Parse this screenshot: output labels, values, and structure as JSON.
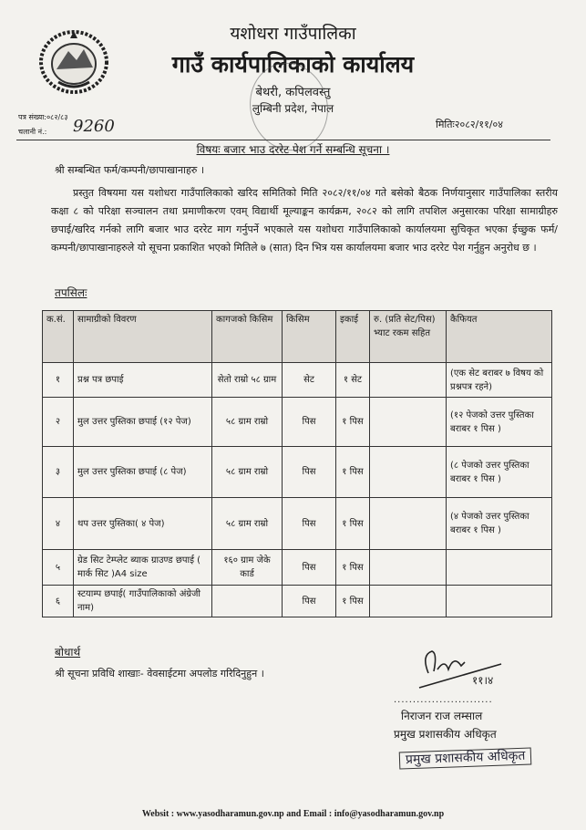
{
  "header": {
    "municipality": "यशोधरा गाउँपालिका",
    "office": "गाउँ कार्यपालिकाको कार्यालय",
    "address_line1": "बेथरी, कपिलवस्तु",
    "address_line2": "लुम्बिनी प्रदेश, नेपाल",
    "letter_no": "पत्र संख्या:०८२/८३",
    "dispatch_no_label": "चलानी नं.:",
    "dispatch_no": "9260",
    "date": "मितिः२०८२/११/०४"
  },
  "subject": "विषयः बजार भाउ दररेट पेश गर्ने सम्बन्धि सूचना ।",
  "salutation": "श्री सम्बन्धित फर्म/कम्पनी/छापाखानाहरु ।",
  "body": "प्रस्तुत विषयमा यस यशोधरा गाउँपालिकाको खरिद समितिको मिति २०८२/११/०४ गते बसेको बैठक निर्णयानुसार गाउँपालिका स्तरीय कक्षा ८ को परिक्षा सञ्चालन तथा प्रमाणीकरण एवम् विद्यार्थी मूल्याङ्कन कार्यक्रम, २०८२ को लागि तपशिल अनुसारका परिक्षा सामाग्रीहरु छपाई/खरिद गर्नको लागि बजार भाउ दररेट माग गर्नुपर्ने भएकाले यस यशोधरा गाउँपालिकाको कार्यालयमा सुचिकृत भएका ईच्छुक फर्म/कम्पनी/छापाखानाहरुले यो सूचना प्रकाशित भएको मितिले ७ (सात) दिन भित्र यस कार्यालयमा बजार भाउ दररेट पेश गर्नुहुन अनुरोध छ ।",
  "details_label": "तपसिलः",
  "table": {
    "headers": [
      "क.सं.",
      "सामाग्रीको विवरण",
      "कागजको किसिम",
      "किसिम",
      "इकाई",
      "रु. (प्रति सेट/पिस) भ्याट रकम सहित",
      "कैफियत"
    ],
    "rows": [
      [
        "१",
        "प्रश्न पत्र छपाई",
        "सेतो राम्रो ५८ ग्राम",
        "सेट",
        "१ सेट",
        "",
        "(एक सेट बराबर ७ विषय को प्रश्नपत्र रहने)"
      ],
      [
        "२",
        "मुल उत्तर पुस्तिका छपाई (१२ पेज)",
        "५८ ग्राम राम्रो",
        "पिस",
        "१ पिस",
        "",
        "(१२ पेजको उत्तर पुस्तिका बराबर १ पिस )"
      ],
      [
        "३",
        "मुल उत्तर पुस्तिका छपाई (८ पेज)",
        "५८ ग्राम राम्रो",
        "पिस",
        "१ पिस",
        "",
        "(८ पेजको उत्तर पुस्तिका बराबर १ पिस )"
      ],
      [
        "४",
        "थप उत्तर पुस्तिका( ४ पेज)",
        "५८ ग्राम राम्रो",
        "पिस",
        "१ पिस",
        "",
        "(४ पेजको उत्तर पुस्तिका बराबर १ पिस )"
      ],
      [
        "५",
        "ग्रेड सिट टेम्प्लेट ब्याक ग्राउण्ड छपाई ( मार्क सिट )A4 size",
        "१६० ग्राम जेके कार्ड",
        "पिस",
        "१ पिस",
        "",
        ""
      ],
      [
        "६",
        "स्टयाम्प छपाई( गाउँपालिकाको अंग्रेजी नाम)",
        "",
        "पिस",
        "१ पिस",
        "",
        ""
      ]
    ]
  },
  "cc": {
    "label": "बोधार्थ",
    "line": "श्री सूचना प्रविधि शाखाः- वेवसाईटमा अपलोड गरिदिनुहुन ।"
  },
  "signature": {
    "handwritten_date": "११।४",
    "name": "निराजन राज लम्साल",
    "title": "प्रमुख प्रशासकीय अधिकृत",
    "stamp": "प्रमुख प्रशासकीय अधिकृत"
  },
  "footer": "Websit : www.yasodharamun.gov.np and Email : info@yasodharamun.gov.np"
}
